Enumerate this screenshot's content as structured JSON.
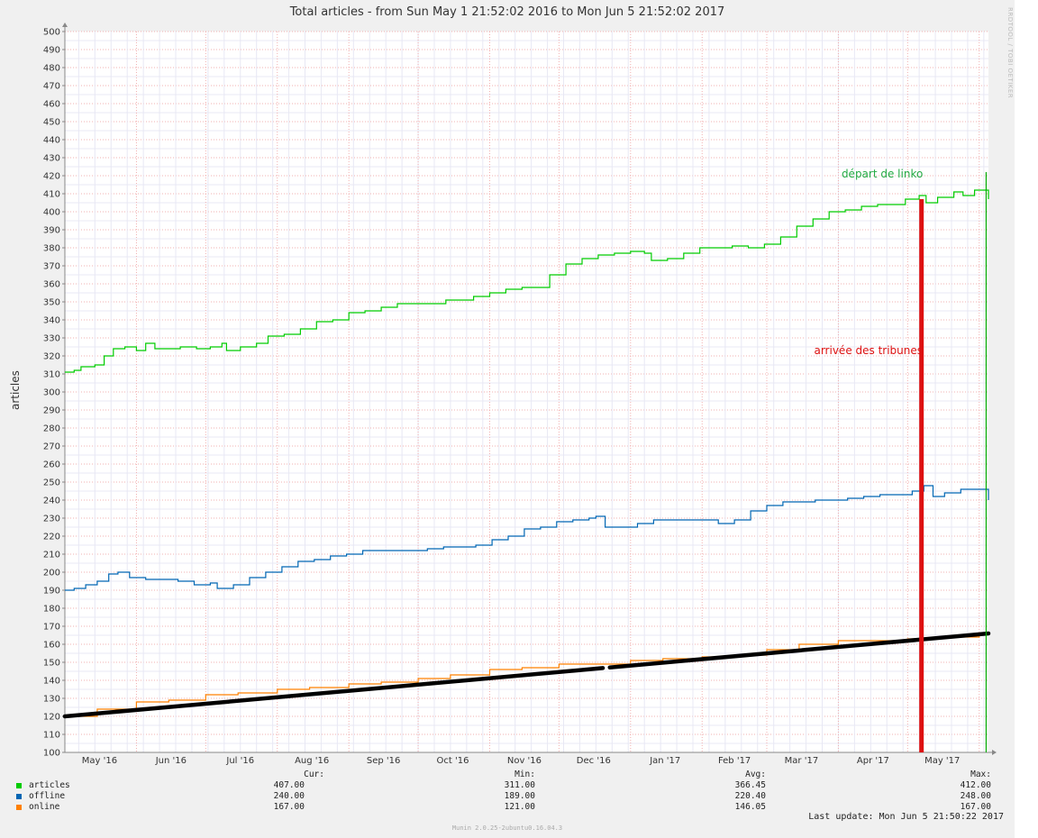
{
  "chart_data": {
    "type": "line",
    "title": "Total articles - from Sun May  1 21:52:02 2016 to Mon Jun  5 21:52:02 2017",
    "ylabel": "articles",
    "ylim": [
      100,
      500
    ],
    "y_ticks": [
      "100",
      "110",
      "120",
      "130",
      "140",
      "150",
      "160",
      "170",
      "180",
      "190",
      "200",
      "210",
      "220",
      "230",
      "240",
      "250",
      "260",
      "270",
      "280",
      "290",
      "300",
      "310",
      "320",
      "330",
      "340",
      "350",
      "360",
      "370",
      "380",
      "390",
      "400",
      "410",
      "420",
      "430",
      "440",
      "450",
      "460",
      "470",
      "480",
      "490",
      "500"
    ],
    "x_range": [
      "2016-05-01",
      "2017-06-05"
    ],
    "x_ticks": [
      {
        "label": "May '16",
        "date": "2016-05-16"
      },
      {
        "label": "Jun '16",
        "date": "2016-06-16"
      },
      {
        "label": "Jul '16",
        "date": "2016-07-16"
      },
      {
        "label": "Aug '16",
        "date": "2016-08-16"
      },
      {
        "label": "Sep '16",
        "date": "2016-09-16"
      },
      {
        "label": "Oct '16",
        "date": "2016-10-16"
      },
      {
        "label": "Nov '16",
        "date": "2016-11-16"
      },
      {
        "label": "Dec '16",
        "date": "2016-12-16"
      },
      {
        "label": "Jan '17",
        "date": "2017-01-16"
      },
      {
        "label": "Feb '17",
        "date": "2017-02-15"
      },
      {
        "label": "Mar '17",
        "date": "2017-03-16"
      },
      {
        "label": "Apr '17",
        "date": "2017-04-16"
      },
      {
        "label": "May '17",
        "date": "2017-05-16"
      }
    ],
    "grid": true,
    "series": [
      {
        "name": "articles",
        "color": "#00cc00",
        "points": [
          [
            "2016-05-01",
            311
          ],
          [
            "2016-05-05",
            312
          ],
          [
            "2016-05-08",
            314
          ],
          [
            "2016-05-14",
            315
          ],
          [
            "2016-05-18",
            320
          ],
          [
            "2016-05-22",
            324
          ],
          [
            "2016-05-27",
            325
          ],
          [
            "2016-06-01",
            323
          ],
          [
            "2016-06-05",
            327
          ],
          [
            "2016-06-09",
            324
          ],
          [
            "2016-06-14",
            324
          ],
          [
            "2016-06-20",
            325
          ],
          [
            "2016-06-27",
            324
          ],
          [
            "2016-07-03",
            325
          ],
          [
            "2016-07-08",
            327
          ],
          [
            "2016-07-10",
            323
          ],
          [
            "2016-07-16",
            325
          ],
          [
            "2016-07-23",
            327
          ],
          [
            "2016-07-28",
            331
          ],
          [
            "2016-08-04",
            332
          ],
          [
            "2016-08-11",
            335
          ],
          [
            "2016-08-18",
            339
          ],
          [
            "2016-08-25",
            340
          ],
          [
            "2016-09-01",
            344
          ],
          [
            "2016-09-08",
            345
          ],
          [
            "2016-09-15",
            347
          ],
          [
            "2016-09-22",
            349
          ],
          [
            "2016-09-29",
            349
          ],
          [
            "2016-10-06",
            349
          ],
          [
            "2016-10-13",
            351
          ],
          [
            "2016-10-20",
            351
          ],
          [
            "2016-10-25",
            353
          ],
          [
            "2016-11-01",
            355
          ],
          [
            "2016-11-08",
            357
          ],
          [
            "2016-11-15",
            358
          ],
          [
            "2016-11-22",
            358
          ],
          [
            "2016-11-27",
            365
          ],
          [
            "2016-12-04",
            371
          ],
          [
            "2016-12-11",
            374
          ],
          [
            "2016-12-18",
            376
          ],
          [
            "2016-12-25",
            377
          ],
          [
            "2017-01-01",
            378
          ],
          [
            "2017-01-07",
            377
          ],
          [
            "2017-01-10",
            373
          ],
          [
            "2017-01-17",
            374
          ],
          [
            "2017-01-24",
            377
          ],
          [
            "2017-01-31",
            380
          ],
          [
            "2017-02-07",
            380
          ],
          [
            "2017-02-14",
            381
          ],
          [
            "2017-02-21",
            380
          ],
          [
            "2017-02-28",
            382
          ],
          [
            "2017-03-07",
            386
          ],
          [
            "2017-03-14",
            392
          ],
          [
            "2017-03-21",
            396
          ],
          [
            "2017-03-28",
            400
          ],
          [
            "2017-04-04",
            401
          ],
          [
            "2017-04-11",
            403
          ],
          [
            "2017-04-18",
            404
          ],
          [
            "2017-04-23",
            404
          ],
          [
            "2017-04-30",
            407
          ],
          [
            "2017-05-06",
            409
          ],
          [
            "2017-05-09",
            405
          ],
          [
            "2017-05-14",
            408
          ],
          [
            "2017-05-21",
            411
          ],
          [
            "2017-05-25",
            409
          ],
          [
            "2017-05-30",
            412
          ],
          [
            "2017-06-04",
            412
          ],
          [
            "2017-06-05",
            407
          ]
        ]
      },
      {
        "name": "offline",
        "color": "#0066b3",
        "points": [
          [
            "2016-05-01",
            190
          ],
          [
            "2016-05-05",
            191
          ],
          [
            "2016-05-10",
            193
          ],
          [
            "2016-05-15",
            195
          ],
          [
            "2016-05-20",
            199
          ],
          [
            "2016-05-24",
            200
          ],
          [
            "2016-05-29",
            197
          ],
          [
            "2016-06-05",
            196
          ],
          [
            "2016-06-12",
            196
          ],
          [
            "2016-06-19",
            195
          ],
          [
            "2016-06-26",
            193
          ],
          [
            "2016-07-03",
            194
          ],
          [
            "2016-07-06",
            191
          ],
          [
            "2016-07-13",
            193
          ],
          [
            "2016-07-20",
            197
          ],
          [
            "2016-07-27",
            200
          ],
          [
            "2016-08-03",
            203
          ],
          [
            "2016-08-10",
            206
          ],
          [
            "2016-08-17",
            207
          ],
          [
            "2016-08-24",
            209
          ],
          [
            "2016-08-31",
            210
          ],
          [
            "2016-09-07",
            212
          ],
          [
            "2016-09-14",
            212
          ],
          [
            "2016-09-21",
            212
          ],
          [
            "2016-09-28",
            212
          ],
          [
            "2016-10-05",
            213
          ],
          [
            "2016-10-12",
            214
          ],
          [
            "2016-10-19",
            214
          ],
          [
            "2016-10-26",
            215
          ],
          [
            "2016-11-02",
            218
          ],
          [
            "2016-11-09",
            220
          ],
          [
            "2016-11-16",
            224
          ],
          [
            "2016-11-23",
            225
          ],
          [
            "2016-11-30",
            228
          ],
          [
            "2016-12-07",
            229
          ],
          [
            "2016-12-14",
            230
          ],
          [
            "2016-12-17",
            231
          ],
          [
            "2016-12-21",
            225
          ],
          [
            "2016-12-28",
            225
          ],
          [
            "2017-01-04",
            227
          ],
          [
            "2017-01-11",
            229
          ],
          [
            "2017-01-18",
            229
          ],
          [
            "2017-01-25",
            229
          ],
          [
            "2017-02-01",
            229
          ],
          [
            "2017-02-08",
            227
          ],
          [
            "2017-02-15",
            229
          ],
          [
            "2017-02-22",
            234
          ],
          [
            "2017-03-01",
            237
          ],
          [
            "2017-03-08",
            239
          ],
          [
            "2017-03-15",
            239
          ],
          [
            "2017-03-22",
            240
          ],
          [
            "2017-03-29",
            240
          ],
          [
            "2017-04-05",
            241
          ],
          [
            "2017-04-12",
            242
          ],
          [
            "2017-04-19",
            243
          ],
          [
            "2017-04-26",
            243
          ],
          [
            "2017-05-03",
            245
          ],
          [
            "2017-05-08",
            248
          ],
          [
            "2017-05-12",
            242
          ],
          [
            "2017-05-17",
            244
          ],
          [
            "2017-05-24",
            246
          ],
          [
            "2017-05-31",
            246
          ],
          [
            "2017-06-03",
            246
          ],
          [
            "2017-06-05",
            240
          ]
        ]
      },
      {
        "name": "online",
        "color": "#ff8000",
        "points": [
          [
            "2016-05-01",
            120
          ],
          [
            "2016-05-15",
            124
          ],
          [
            "2016-06-01",
            128
          ],
          [
            "2016-06-15",
            129
          ],
          [
            "2016-07-01",
            132
          ],
          [
            "2016-07-15",
            133
          ],
          [
            "2016-08-01",
            135
          ],
          [
            "2016-08-15",
            136
          ],
          [
            "2016-09-01",
            138
          ],
          [
            "2016-09-15",
            139
          ],
          [
            "2016-10-01",
            141
          ],
          [
            "2016-10-15",
            143
          ],
          [
            "2016-11-01",
            146
          ],
          [
            "2016-11-15",
            147
          ],
          [
            "2016-12-01",
            149
          ],
          [
            "2016-12-15",
            149
          ],
          [
            "2017-01-01",
            151
          ],
          [
            "2017-01-15",
            152
          ],
          [
            "2017-02-01",
            153
          ],
          [
            "2017-02-15",
            154
          ],
          [
            "2017-03-01",
            157
          ],
          [
            "2017-03-15",
            160
          ],
          [
            "2017-04-01",
            162
          ],
          [
            "2017-04-15",
            162
          ],
          [
            "2017-05-01",
            163
          ],
          [
            "2017-05-15",
            164
          ],
          [
            "2017-06-01",
            166
          ],
          [
            "2017-06-05",
            167
          ]
        ]
      }
    ],
    "trend_line": {
      "color": "#000000",
      "start": [
        "2016-05-01",
        120
      ],
      "end": [
        "2017-06-05",
        166
      ],
      "gap": [
        "2016-12-20",
        "2016-12-23"
      ]
    },
    "annotations": [
      {
        "text": "départ de linko",
        "color": "#22aa44",
        "date": "2017-04-20",
        "value": 419
      },
      {
        "text": "arrivée des tribunes",
        "color": "#dd1111",
        "date": "2017-04-14",
        "value": 321
      }
    ],
    "markers": [
      {
        "name": "red-marker",
        "color": "#dd1111",
        "date": "2017-05-07",
        "from": 100,
        "to": 407
      },
      {
        "name": "green-marker",
        "color": "#00aa00",
        "date": "2017-06-04",
        "from": 100,
        "to": 422
      }
    ],
    "legend": {
      "columns": [
        "Cur:",
        "Min:",
        "Avg:",
        "Max:"
      ],
      "rows": [
        {
          "name": "articles",
          "color": "#00cc00",
          "values": [
            "407.00",
            "311.00",
            "366.45",
            "412.00"
          ]
        },
        {
          "name": "offline",
          "color": "#0066b3",
          "values": [
            "240.00",
            "189.00",
            "220.40",
            "248.00"
          ]
        },
        {
          "name": "online",
          "color": "#ff8000",
          "values": [
            "167.00",
            "121.00",
            "146.05",
            "167.00"
          ]
        }
      ]
    },
    "last_update": "Last update:  Mon Jun  5 21:50:22 2017",
    "footer": "Munin 2.0.25-2ubuntu0.16.04.3",
    "side_credit": "RRDTOOL / TOBI OETIKER"
  }
}
